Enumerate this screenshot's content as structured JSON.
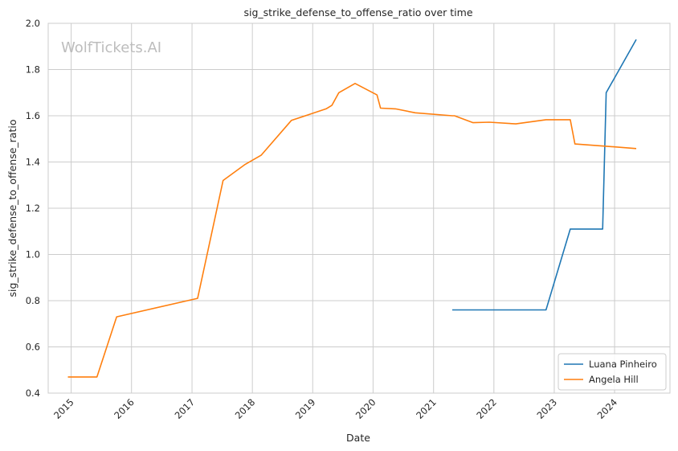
{
  "chart_data": {
    "type": "line",
    "title": "sig_strike_defense_to_offense_ratio over time",
    "xlabel": "Date",
    "ylabel": "sig_strike_defense_to_offense_ratio",
    "watermark": "WolfTickets.AI",
    "xlim": [
      "2014-08-15",
      "2024-12-01"
    ],
    "ylim": [
      0.4,
      2.0
    ],
    "x_ticks": [
      "2015",
      "2016",
      "2017",
      "2018",
      "2019",
      "2020",
      "2021",
      "2022",
      "2023",
      "2024"
    ],
    "y_ticks": [
      "0.4",
      "0.6",
      "0.8",
      "1.0",
      "1.2",
      "1.4",
      "1.6",
      "1.8",
      "2.0"
    ],
    "grid": true,
    "legend": "lower right",
    "series": [
      {
        "name": "Luana Pinheiro",
        "color": "#1f77b4",
        "x": [
          "2021-04-24",
          "2022-11-12",
          "2023-04-08",
          "2023-10-21",
          "2023-11-11",
          "2024-05-11"
        ],
        "values": [
          0.76,
          0.76,
          1.11,
          1.11,
          1.7,
          1.93
        ]
      },
      {
        "name": "Angela Hill",
        "color": "#ff7f0e",
        "x": [
          "2014-12-12",
          "2015-06-06",
          "2015-10-03",
          "2017-02-04",
          "2017-07-08",
          "2017-11-19",
          "2018-02-24",
          "2018-08-25",
          "2019-03-23",
          "2019-04-27",
          "2019-06-08",
          "2019-09-14",
          "2020-01-25",
          "2020-02-15",
          "2020-05-16",
          "2020-09-12",
          "2021-04-24",
          "2021-05-08",
          "2021-08-28",
          "2021-12-04",
          "2022-05-14",
          "2022-11-12",
          "2023-04-08",
          "2023-05-06",
          "2023-11-11",
          "2024-05-11"
        ],
        "values": [
          0.47,
          0.47,
          0.73,
          0.81,
          1.32,
          1.39,
          1.43,
          1.58,
          1.63,
          1.645,
          1.7,
          1.74,
          1.69,
          1.633,
          1.63,
          1.613,
          1.6,
          1.6,
          1.57,
          1.572,
          1.565,
          1.583,
          1.583,
          1.478,
          1.468,
          1.458
        ]
      }
    ]
  }
}
